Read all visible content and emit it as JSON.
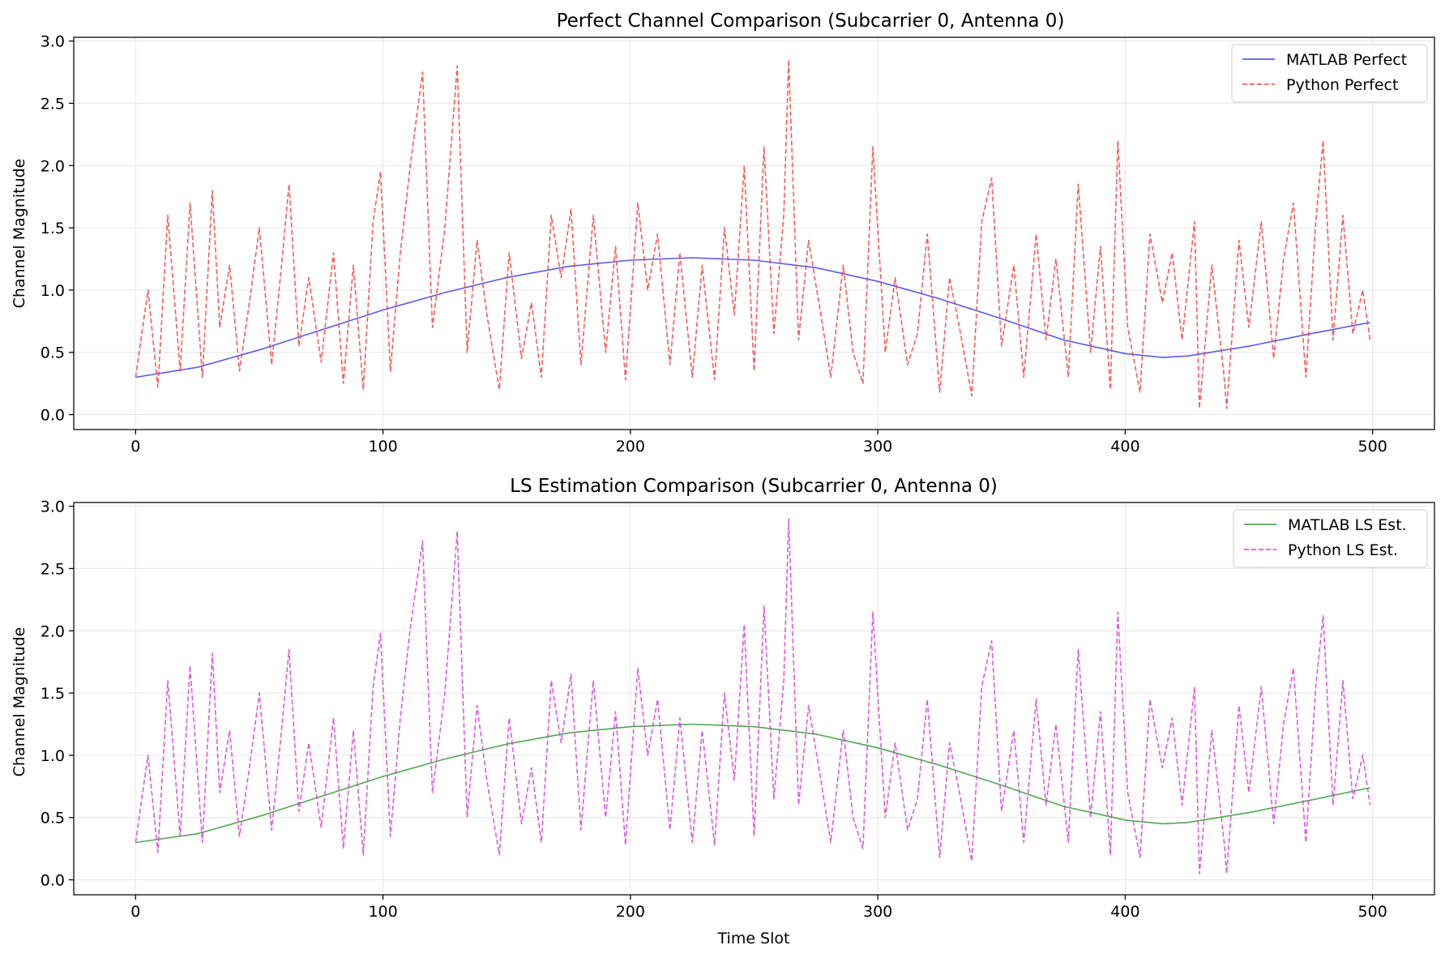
{
  "chart_data": [
    {
      "type": "line",
      "title": "Perfect Channel Comparison (Subcarrier 0, Antenna 0)",
      "xlabel": "",
      "ylabel": "Channel Magnitude",
      "xlim": [
        -25,
        525
      ],
      "ylim": [
        -0.12,
        3.03
      ],
      "xticks": [
        0,
        100,
        200,
        300,
        400,
        500
      ],
      "yticks": [
        0.0,
        0.5,
        1.0,
        1.5,
        2.0,
        2.5,
        3.0
      ],
      "grid": true,
      "legend_position": "top-right",
      "series": [
        {
          "name": "MATLAB Perfect",
          "style": "solid",
          "color": "#3b3bf2",
          "x": [
            0,
            25,
            50,
            75,
            100,
            125,
            150,
            175,
            200,
            225,
            250,
            275,
            300,
            325,
            350,
            375,
            400,
            415,
            425,
            450,
            475,
            499
          ],
          "y": [
            0.3,
            0.38,
            0.52,
            0.68,
            0.84,
            0.98,
            1.1,
            1.19,
            1.24,
            1.26,
            1.24,
            1.18,
            1.07,
            0.93,
            0.77,
            0.6,
            0.49,
            0.46,
            0.47,
            0.55,
            0.65,
            0.74
          ]
        },
        {
          "name": "Python Perfect",
          "style": "dashed",
          "color": "#f24040",
          "x": [
            0,
            5,
            9,
            13,
            18,
            22,
            27,
            31,
            34,
            38,
            42,
            46,
            50,
            55,
            59,
            62,
            66,
            70,
            75,
            80,
            84,
            88,
            92,
            96,
            99,
            103,
            107,
            111,
            116,
            120,
            125,
            130,
            134,
            138,
            142,
            147,
            151,
            156,
            160,
            164,
            168,
            172,
            176,
            180,
            185,
            190,
            194,
            198,
            203,
            207,
            211,
            216,
            220,
            225,
            229,
            234,
            238,
            242,
            246,
            250,
            254,
            258,
            262,
            264,
            268,
            272,
            277,
            281,
            286,
            290,
            294,
            298,
            303,
            307,
            312,
            316,
            320,
            325,
            329,
            333,
            338,
            342,
            346,
            350,
            355,
            359,
            364,
            368,
            372,
            377,
            381,
            386,
            390,
            394,
            397,
            401,
            406,
            410,
            415,
            419,
            423,
            428,
            430,
            435,
            440,
            441,
            446,
            450,
            455,
            460,
            464,
            468,
            473,
            477,
            480,
            484,
            488,
            492,
            496,
            499
          ],
          "y": [
            0.3,
            1.0,
            0.22,
            1.6,
            0.35,
            1.7,
            0.3,
            1.8,
            0.7,
            1.2,
            0.35,
            0.9,
            1.5,
            0.4,
            1.2,
            1.85,
            0.55,
            1.1,
            0.42,
            1.3,
            0.25,
            1.2,
            0.2,
            1.55,
            1.95,
            0.35,
            1.3,
            2.0,
            2.75,
            0.7,
            1.5,
            2.8,
            0.5,
            1.4,
            0.8,
            0.2,
            1.3,
            0.45,
            0.9,
            0.3,
            1.6,
            1.1,
            1.65,
            0.4,
            1.6,
            0.5,
            1.35,
            0.28,
            1.7,
            1.0,
            1.45,
            0.4,
            1.3,
            0.3,
            1.2,
            0.28,
            1.5,
            0.8,
            2.0,
            0.35,
            2.15,
            0.65,
            1.6,
            2.85,
            0.6,
            1.4,
            0.8,
            0.3,
            1.2,
            0.5,
            0.25,
            2.15,
            0.5,
            1.1,
            0.4,
            0.65,
            1.45,
            0.18,
            1.1,
            0.7,
            0.15,
            1.55,
            1.9,
            0.55,
            1.2,
            0.3,
            1.45,
            0.6,
            1.25,
            0.3,
            1.85,
            0.5,
            1.35,
            0.2,
            2.2,
            0.7,
            0.18,
            1.45,
            0.9,
            1.3,
            0.6,
            1.55,
            0.05,
            1.2,
            0.3,
            0.05,
            1.4,
            0.7,
            1.55,
            0.45,
            1.25,
            1.7,
            0.3,
            1.55,
            2.2,
            0.6,
            1.6,
            0.65,
            1.0,
            0.6
          ]
        }
      ]
    },
    {
      "type": "line",
      "title": "LS Estimation Comparison (Subcarrier 0, Antenna 0)",
      "xlabel": "Time Slot",
      "ylabel": "Channel Magnitude",
      "xlim": [
        -25,
        525
      ],
      "ylim": [
        -0.12,
        3.03
      ],
      "xticks": [
        0,
        100,
        200,
        300,
        400,
        500
      ],
      "yticks": [
        0.0,
        0.5,
        1.0,
        1.5,
        2.0,
        2.5,
        3.0
      ],
      "grid": true,
      "legend_position": "top-right",
      "series": [
        {
          "name": "MATLAB LS Est.",
          "style": "solid",
          "color": "#2e9a2e",
          "x": [
            0,
            25,
            50,
            75,
            100,
            125,
            150,
            175,
            200,
            225,
            250,
            275,
            300,
            325,
            350,
            375,
            400,
            415,
            425,
            450,
            475,
            499
          ],
          "y": [
            0.3,
            0.37,
            0.51,
            0.67,
            0.83,
            0.97,
            1.09,
            1.18,
            1.23,
            1.25,
            1.23,
            1.17,
            1.06,
            0.92,
            0.76,
            0.59,
            0.48,
            0.45,
            0.46,
            0.54,
            0.64,
            0.74
          ]
        },
        {
          "name": "Python LS Est.",
          "style": "dashed",
          "color": "#d43ed8",
          "x": [
            0,
            5,
            9,
            13,
            18,
            22,
            27,
            31,
            34,
            38,
            42,
            46,
            50,
            55,
            59,
            62,
            66,
            70,
            75,
            80,
            84,
            88,
            92,
            96,
            99,
            103,
            107,
            111,
            116,
            120,
            125,
            130,
            134,
            138,
            142,
            147,
            151,
            156,
            160,
            164,
            168,
            172,
            176,
            180,
            185,
            190,
            194,
            198,
            203,
            207,
            211,
            216,
            220,
            225,
            229,
            234,
            238,
            242,
            246,
            250,
            254,
            258,
            262,
            264,
            268,
            272,
            277,
            281,
            286,
            290,
            294,
            298,
            303,
            307,
            312,
            316,
            320,
            325,
            329,
            333,
            338,
            342,
            346,
            350,
            355,
            359,
            364,
            368,
            372,
            377,
            381,
            386,
            390,
            394,
            397,
            401,
            406,
            410,
            415,
            419,
            423,
            428,
            430,
            435,
            440,
            441,
            446,
            450,
            455,
            460,
            464,
            468,
            473,
            477,
            480,
            484,
            488,
            492,
            496,
            499
          ],
          "y": [
            0.3,
            1.0,
            0.22,
            1.6,
            0.35,
            1.72,
            0.3,
            1.82,
            0.7,
            1.2,
            0.35,
            0.9,
            1.5,
            0.4,
            1.2,
            1.85,
            0.55,
            1.1,
            0.42,
            1.3,
            0.25,
            1.2,
            0.2,
            1.55,
            1.98,
            0.35,
            1.3,
            2.02,
            2.72,
            0.7,
            1.5,
            2.8,
            0.5,
            1.4,
            0.8,
            0.2,
            1.3,
            0.45,
            0.9,
            0.3,
            1.6,
            1.1,
            1.65,
            0.4,
            1.6,
            0.5,
            1.35,
            0.28,
            1.7,
            1.0,
            1.45,
            0.4,
            1.3,
            0.3,
            1.2,
            0.28,
            1.5,
            0.8,
            2.05,
            0.35,
            2.2,
            0.65,
            1.6,
            2.9,
            0.6,
            1.4,
            0.8,
            0.3,
            1.2,
            0.5,
            0.25,
            2.15,
            0.5,
            1.1,
            0.4,
            0.65,
            1.45,
            0.18,
            1.1,
            0.7,
            0.15,
            1.55,
            1.92,
            0.55,
            1.2,
            0.3,
            1.45,
            0.6,
            1.25,
            0.3,
            1.85,
            0.5,
            1.35,
            0.2,
            2.15,
            0.7,
            0.18,
            1.45,
            0.9,
            1.3,
            0.6,
            1.55,
            0.05,
            1.2,
            0.3,
            0.05,
            1.4,
            0.7,
            1.55,
            0.45,
            1.25,
            1.7,
            0.3,
            1.55,
            2.12,
            0.6,
            1.6,
            0.65,
            1.0,
            0.6
          ]
        }
      ]
    }
  ]
}
